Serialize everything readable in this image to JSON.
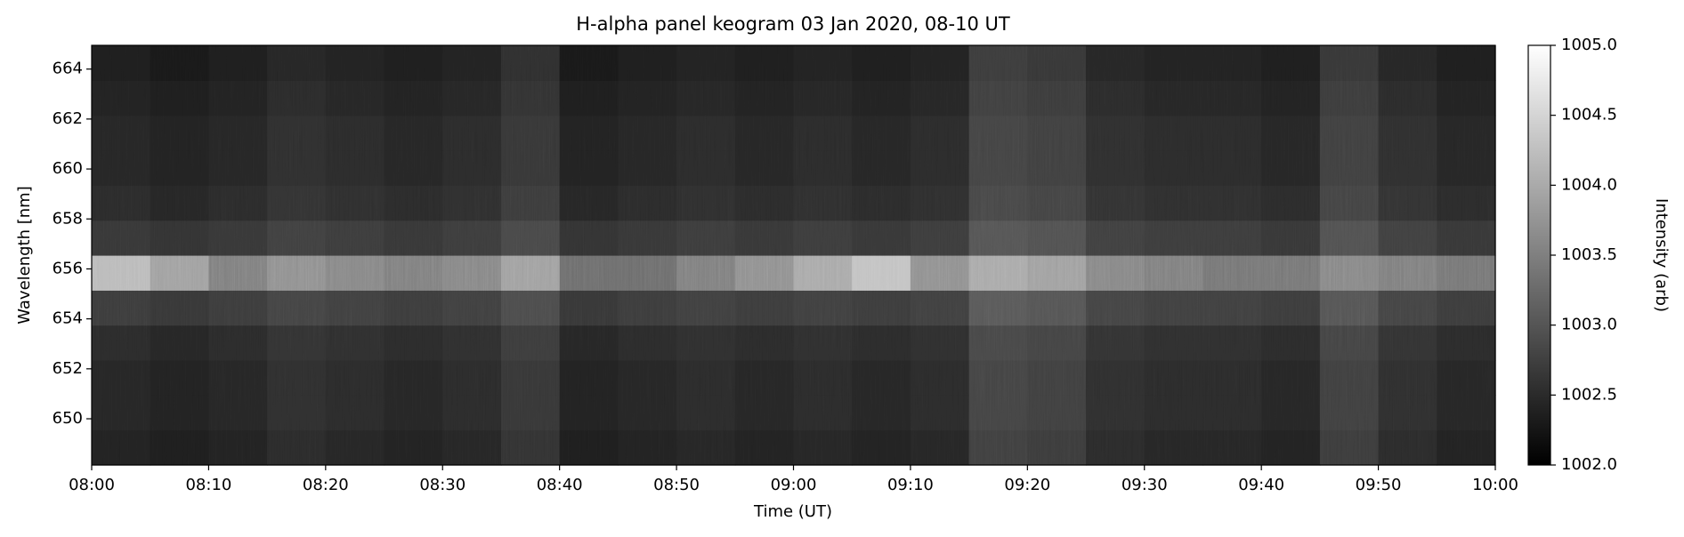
{
  "chart_data": {
    "type": "heatmap",
    "title": "H-alpha panel keogram 03 Jan 2020, 08-10 UT",
    "x_label": "Time (UT)",
    "y_label": "Wavelength [nm]",
    "colorbar_label": "Intensity (arb)",
    "colormap": [
      "#000000",
      "#ffffff"
    ],
    "xlim": [
      "08:00",
      "10:00"
    ],
    "xticks": [
      "08:00",
      "08:10",
      "08:20",
      "08:30",
      "08:40",
      "08:50",
      "09:00",
      "09:10",
      "09:20",
      "09:30",
      "09:40",
      "09:50",
      "10:00"
    ],
    "ylim": [
      648.15,
      664.95
    ],
    "yticks": [
      650,
      652,
      654,
      656,
      658,
      660,
      662,
      664
    ],
    "clim": [
      1002,
      1005
    ],
    "cticks": [
      {
        "value": 1002,
        "label": "1002.0"
      },
      1002.5,
      {
        "value": 1003,
        "label": "1003.0"
      },
      1003.5,
      {
        "value": 1004,
        "label": "1004.0"
      },
      1004.5,
      {
        "value": 1005,
        "label": "1005.0"
      }
    ],
    "x": [
      "08:00",
      "08:05",
      "08:10",
      "08:15",
      "08:20",
      "08:25",
      "08:30",
      "08:35",
      "08:40",
      "08:45",
      "08:50",
      "08:55",
      "09:00",
      "09:05",
      "09:10",
      "09:15",
      "09:20",
      "09:25",
      "09:30",
      "09:35",
      "09:40",
      "09:45",
      "09:50",
      "09:55"
    ],
    "y": [
      648.85,
      650.25,
      651.65,
      653.05,
      654.45,
      655.85,
      657.25,
      658.65,
      660.05,
      661.45,
      662.85,
      664.25
    ],
    "z": [
      [
        1002.4,
        1002.35,
        1002.4,
        1002.5,
        1002.45,
        1002.4,
        1002.45,
        1002.6,
        1002.35,
        1002.4,
        1002.45,
        1002.4,
        1002.45,
        1002.4,
        1002.45,
        1002.75,
        1002.7,
        1002.5,
        1002.45,
        1002.45,
        1002.4,
        1002.7,
        1002.5,
        1002.4
      ],
      [
        1002.45,
        1002.4,
        1002.45,
        1002.55,
        1002.5,
        1002.45,
        1002.5,
        1002.65,
        1002.4,
        1002.45,
        1002.5,
        1002.45,
        1002.5,
        1002.45,
        1002.5,
        1002.8,
        1002.75,
        1002.55,
        1002.5,
        1002.5,
        1002.45,
        1002.75,
        1002.55,
        1002.45
      ],
      [
        1002.45,
        1002.4,
        1002.45,
        1002.55,
        1002.5,
        1002.45,
        1002.5,
        1002.65,
        1002.4,
        1002.45,
        1002.5,
        1002.45,
        1002.5,
        1002.45,
        1002.5,
        1002.8,
        1002.75,
        1002.55,
        1002.5,
        1002.5,
        1002.45,
        1002.75,
        1002.55,
        1002.45
      ],
      [
        1002.5,
        1002.45,
        1002.5,
        1002.6,
        1002.55,
        1002.5,
        1002.55,
        1002.7,
        1002.45,
        1002.5,
        1002.55,
        1002.5,
        1002.55,
        1002.5,
        1002.55,
        1002.85,
        1002.8,
        1002.6,
        1002.55,
        1002.55,
        1002.5,
        1002.8,
        1002.6,
        1002.5
      ],
      [
        1002.7,
        1002.65,
        1002.7,
        1002.8,
        1002.75,
        1002.7,
        1002.75,
        1002.9,
        1002.65,
        1002.7,
        1002.75,
        1002.7,
        1002.75,
        1002.7,
        1002.75,
        1003.05,
        1003.0,
        1002.8,
        1002.75,
        1002.75,
        1002.7,
        1003.0,
        1002.8,
        1002.7
      ],
      [
        1004.2,
        1003.9,
        1003.5,
        1003.7,
        1003.6,
        1003.5,
        1003.6,
        1003.9,
        1003.3,
        1003.3,
        1003.5,
        1003.7,
        1004.0,
        1004.3,
        1003.7,
        1004.0,
        1003.9,
        1003.6,
        1003.5,
        1003.4,
        1003.4,
        1003.6,
        1003.5,
        1003.4
      ],
      [
        1002.65,
        1002.6,
        1002.65,
        1002.75,
        1002.7,
        1002.65,
        1002.7,
        1002.85,
        1002.6,
        1002.65,
        1002.7,
        1002.65,
        1002.7,
        1002.65,
        1002.7,
        1003.0,
        1002.95,
        1002.75,
        1002.7,
        1002.7,
        1002.65,
        1002.95,
        1002.75,
        1002.65
      ],
      [
        1002.5,
        1002.45,
        1002.5,
        1002.6,
        1002.55,
        1002.5,
        1002.55,
        1002.7,
        1002.45,
        1002.5,
        1002.55,
        1002.5,
        1002.55,
        1002.5,
        1002.55,
        1002.85,
        1002.8,
        1002.6,
        1002.55,
        1002.55,
        1002.5,
        1002.8,
        1002.6,
        1002.5
      ],
      [
        1002.45,
        1002.4,
        1002.45,
        1002.55,
        1002.5,
        1002.45,
        1002.5,
        1002.65,
        1002.4,
        1002.45,
        1002.5,
        1002.45,
        1002.5,
        1002.45,
        1002.5,
        1002.8,
        1002.75,
        1002.55,
        1002.5,
        1002.5,
        1002.45,
        1002.75,
        1002.55,
        1002.45
      ],
      [
        1002.45,
        1002.4,
        1002.45,
        1002.55,
        1002.5,
        1002.45,
        1002.5,
        1002.65,
        1002.4,
        1002.45,
        1002.5,
        1002.45,
        1002.5,
        1002.45,
        1002.5,
        1002.8,
        1002.75,
        1002.55,
        1002.5,
        1002.5,
        1002.45,
        1002.75,
        1002.55,
        1002.45
      ],
      [
        1002.4,
        1002.35,
        1002.4,
        1002.5,
        1002.45,
        1002.4,
        1002.45,
        1002.6,
        1002.35,
        1002.4,
        1002.45,
        1002.4,
        1002.45,
        1002.4,
        1002.45,
        1002.75,
        1002.7,
        1002.5,
        1002.45,
        1002.45,
        1002.4,
        1002.7,
        1002.5,
        1002.4
      ],
      [
        1002.35,
        1002.3,
        1002.35,
        1002.45,
        1002.4,
        1002.35,
        1002.4,
        1002.55,
        1002.3,
        1002.35,
        1002.4,
        1002.35,
        1002.4,
        1002.35,
        1002.4,
        1002.7,
        1002.65,
        1002.45,
        1002.4,
        1002.4,
        1002.35,
        1002.65,
        1002.45,
        1002.35
      ]
    ]
  }
}
